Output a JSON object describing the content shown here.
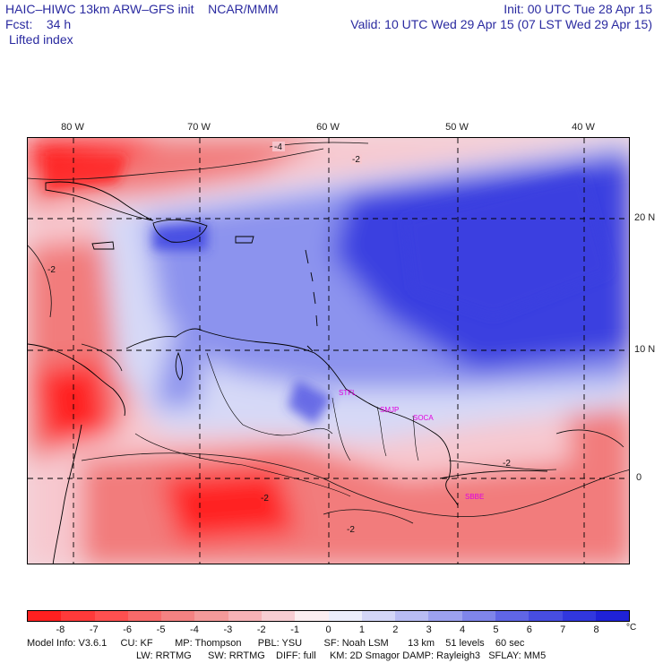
{
  "header": {
    "title": "HAIC–HIWC 13km ARW–GFS init    NCAR/MMM",
    "fcst": "Fcst:    34 h",
    "field": "Lifted index",
    "init": "Init: 00 UTC Tue 28 Apr 15",
    "valid": "Valid: 10 UTC Wed 29 Apr 15 (07 LST Wed 29 Apr 15)"
  },
  "map": {
    "longitude_labels": [
      "80 W",
      "70 W",
      "60 W",
      "50 W",
      "40 W"
    ],
    "latitude_labels": [
      "20 N",
      "10 N",
      "0"
    ],
    "contour_labels": [
      "-4",
      "-2",
      "-2",
      "-2",
      "-2",
      "-2"
    ],
    "stations": [
      "STFL",
      "SMJP",
      "SOCA",
      "SBBE"
    ],
    "colors": {
      "strong_negative": "#ff2020",
      "mid_negative": "#f27c7c",
      "weak_negative": "#f7c8cf",
      "neutral": "#fbeef0",
      "weak_positive": "#d6d9f7",
      "mid_positive": "#8c93ee",
      "strong_positive": "#3a3fe0",
      "station": "#e000e0"
    }
  },
  "colorbar": {
    "ticks": [
      "-8",
      "-7",
      "-6",
      "-5",
      "-4",
      "-3",
      "-2",
      "-1",
      "0",
      "1",
      "2",
      "3",
      "4",
      "5",
      "6",
      "7",
      "8"
    ],
    "unit": "°C",
    "colors": [
      "#ff2020",
      "#ff3a3a",
      "#ff5050",
      "#f86a6a",
      "#f48282",
      "#f49a9a",
      "#f6b2b6",
      "#f7cdd2",
      "#fbeef0",
      "#eceefb",
      "#d3d6f7",
      "#b8bcf3",
      "#9ca1ef",
      "#7f85ea",
      "#6066e6",
      "#474de2",
      "#3137de",
      "#1f22d8"
    ]
  },
  "footer": {
    "line1": "Model Info: V3.6.1     CU: KF        MP: Thompson      PBL: YSU        SF: Noah LSM       13 km    51 levels    60 sec",
    "line2": "LW: RRTMG      SW: RRTMG    DIFF: full     KM: 2D Smagor DAMP: Rayleigh3   SFLAY: MM5"
  }
}
